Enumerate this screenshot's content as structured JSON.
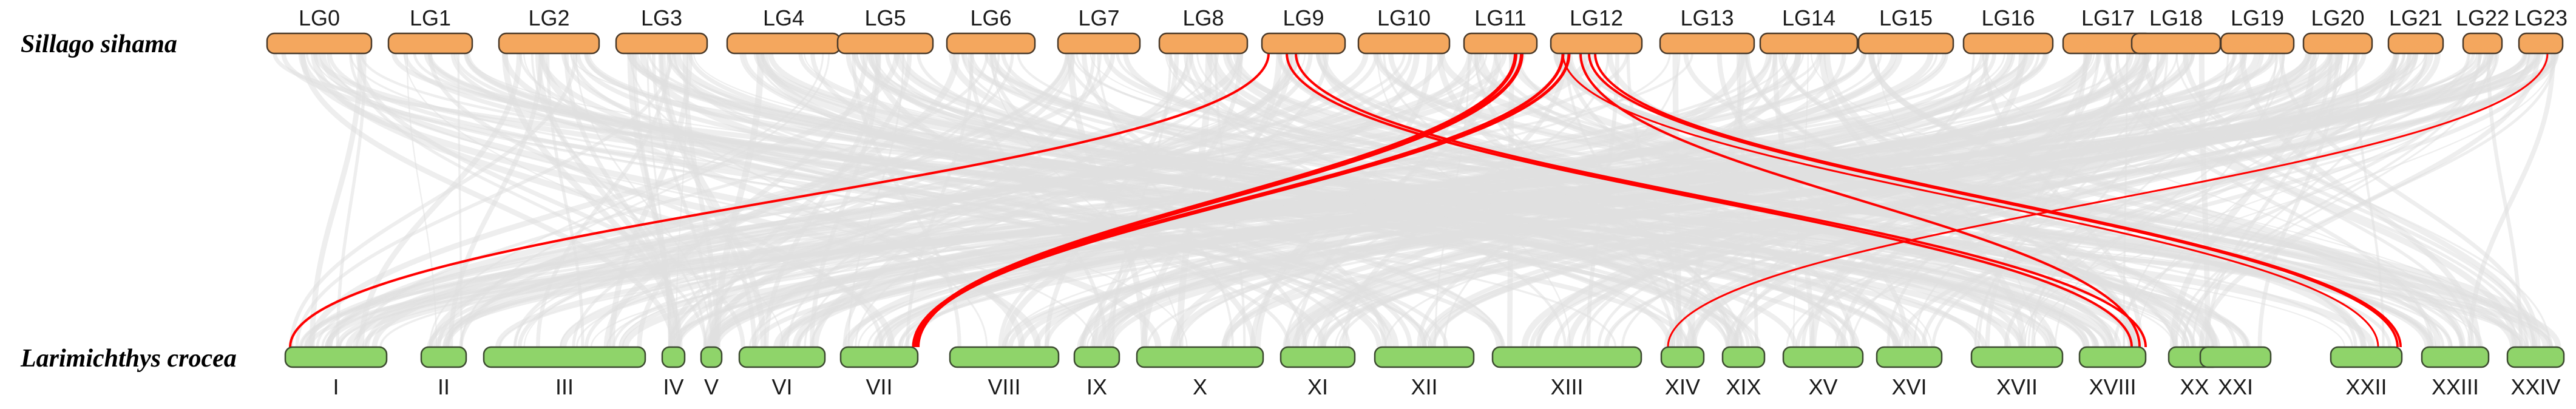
{
  "diagram": {
    "top_species": "Sillago sihama",
    "bottom_species": "Larimichthys crocea",
    "colors": {
      "top_chromosome": "#f4a75e",
      "bottom_chromosome": "#8fd46a",
      "background_links": "#e0e0e0",
      "highlight_links": "#ff0000"
    },
    "top_chromosomes": [
      "LG0",
      "LG1",
      "LG2",
      "LG3",
      "LG4",
      "LG5",
      "LG6",
      "LG7",
      "LG8",
      "LG9",
      "LG10",
      "LG11",
      "LG12",
      "LG13",
      "LG14",
      "LG15",
      "LG16",
      "LG17",
      "LG18",
      "LG19",
      "LG20",
      "LG21",
      "LG22",
      "LG23"
    ],
    "bottom_chromosomes": [
      "I",
      "II",
      "III",
      "IV",
      "V",
      "VI",
      "VII",
      "VIII",
      "IX",
      "X",
      "XI",
      "XII",
      "XIII",
      "XIV",
      "XIX",
      "XV",
      "XVI",
      "XVII",
      "XVIII",
      "XX",
      "XXI",
      "XXII",
      "XXIII",
      "XXIV"
    ],
    "highlighted_links": [
      {
        "from": "LG9",
        "to": "I"
      },
      {
        "from": "LG9",
        "to": "XVIII"
      },
      {
        "from": "LG9",
        "to": "XVIII"
      },
      {
        "from": "LG11",
        "to": "VII"
      },
      {
        "from": "LG11",
        "to": "VII"
      },
      {
        "from": "LG12",
        "to": "VII"
      },
      {
        "from": "LG12",
        "to": "VII"
      },
      {
        "from": "LG12",
        "to": "XVIII"
      },
      {
        "from": "LG12",
        "to": "XXII"
      },
      {
        "from": "LG12",
        "to": "XXII"
      },
      {
        "from": "LG12",
        "to": "XXII"
      },
      {
        "from": "LG23",
        "to": "XIV"
      }
    ]
  }
}
